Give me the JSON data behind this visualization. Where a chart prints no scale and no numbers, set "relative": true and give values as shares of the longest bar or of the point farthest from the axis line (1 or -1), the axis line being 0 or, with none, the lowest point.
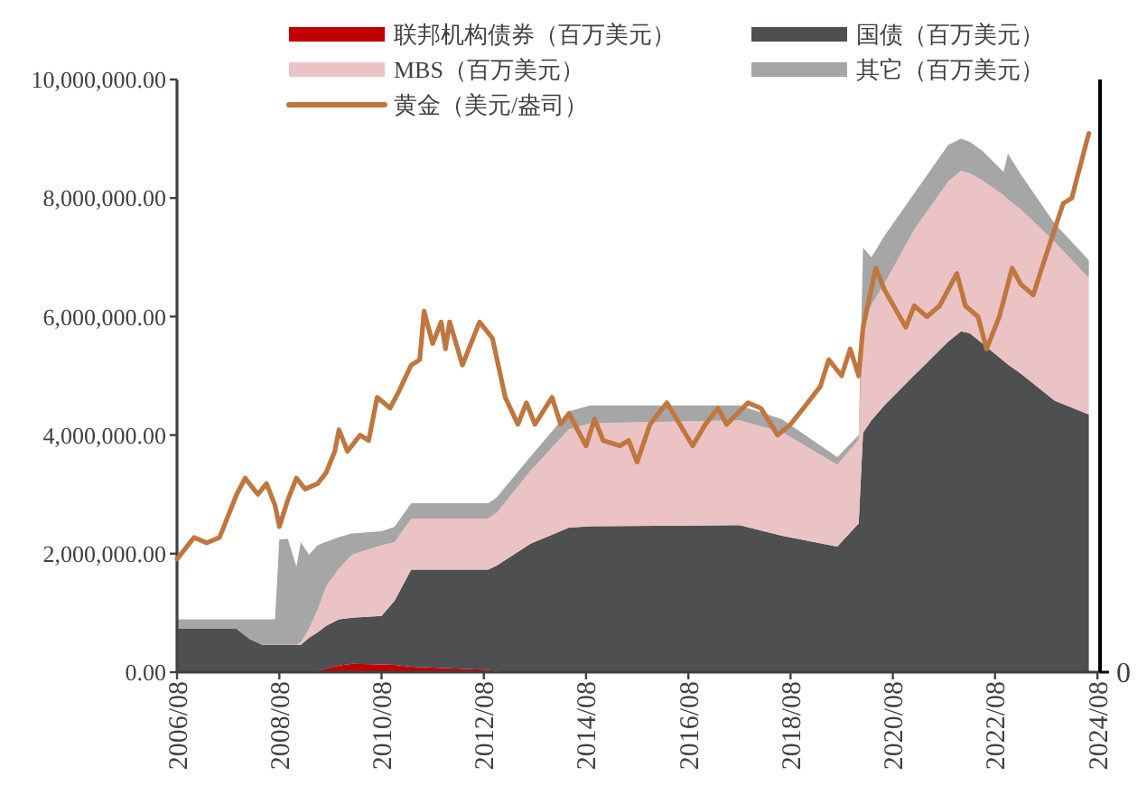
{
  "chart_data": [
    {
      "type": "area",
      "stacked": true,
      "legend": "top",
      "xlim": [
        "2006-08",
        "2024-08-20"
      ],
      "xticks": [
        {
          "value": "2006-08",
          "label": "2006/08"
        },
        {
          "value": "2008-08",
          "label": "2008/08"
        },
        {
          "value": "2010-08",
          "label": "2010/08"
        },
        {
          "value": "2012-08",
          "label": "2012/08"
        },
        {
          "value": "2014-08",
          "label": "2014/08"
        },
        {
          "value": "2016-08",
          "label": "2016/08"
        },
        {
          "value": "2018-08",
          "label": "2018/08"
        },
        {
          "value": "2020-08",
          "label": "2020/08"
        },
        {
          "value": "2022-08",
          "label": "2022/08"
        },
        {
          "value": "2024-08",
          "label": "2024/08"
        }
      ],
      "ylim": [
        0,
        10000000
      ],
      "yticks": [
        {
          "value": 0,
          "label": "0.00"
        },
        {
          "value": 2000000,
          "label": "2,000,000.00"
        },
        {
          "value": 4000000,
          "label": "4,000,000.00"
        },
        {
          "value": 6000000,
          "label": "6,000,000.00"
        },
        {
          "value": 8000000,
          "label": "8,000,000.00"
        },
        {
          "value": 10000000,
          "label": "10,000,000.00"
        }
      ],
      "x": [
        "2006-08",
        "2007-10",
        "2008-01",
        "2008-04",
        "2008-07",
        "2008-08",
        "2008-10",
        "2008-12",
        "2009-01",
        "2009-03",
        "2009-05",
        "2009-07",
        "2009-10",
        "2010-01",
        "2010-08",
        "2010-11",
        "2011-03",
        "2012-09",
        "2012-11",
        "2013-07",
        "2014-04",
        "2014-09",
        "2017-08",
        "2018-06",
        "2019-07",
        "2019-12",
        "2020-01",
        "2020-03",
        "2020-06",
        "2021-01",
        "2021-09",
        "2021-12",
        "2022-02",
        "2022-05",
        "2022-10",
        "2022-11",
        "2023-02",
        "2023-10",
        "2024-06"
      ],
      "series": [
        {
          "name": "联邦机构债券（百万美元）",
          "color": "#c00000",
          "values": [
            0,
            0,
            0,
            0,
            0,
            0,
            0,
            0,
            0,
            0,
            20000,
            60000,
            110000,
            140000,
            130000,
            120000,
            90000,
            40000,
            20000,
            0,
            0,
            0,
            0,
            0,
            0,
            0,
            0,
            0,
            0,
            0,
            0,
            0,
            0,
            0,
            0,
            0,
            0,
            0,
            0
          ]
        },
        {
          "name": "国债（百万美元）",
          "color": "#4e4f51",
          "values": [
            730000,
            730000,
            560000,
            460000,
            460000,
            460000,
            460000,
            460000,
            460000,
            580000,
            650000,
            720000,
            780000,
            780000,
            820000,
            1080000,
            1640000,
            1690000,
            1780000,
            2170000,
            2440000,
            2460000,
            2480000,
            2300000,
            2120000,
            2510000,
            4040000,
            4250000,
            4500000,
            5010000,
            5580000,
            5750000,
            5720000,
            5550000,
            5250000,
            5190000,
            5040000,
            4580000,
            4350000
          ]
        },
        {
          "name": "MBS（百万美元）",
          "color": "#ebc3c4",
          "values": [
            0,
            0,
            0,
            0,
            0,
            0,
            0,
            0,
            40000,
            150000,
            380000,
            670000,
            860000,
            1060000,
            1190000,
            990000,
            860000,
            860000,
            890000,
            1230000,
            1660000,
            1740000,
            1770000,
            1750000,
            1380000,
            1410000,
            1890000,
            1950000,
            2050000,
            2460000,
            2700000,
            2710000,
            2700000,
            2750000,
            2800000,
            2790000,
            2770000,
            2680000,
            2300000
          ]
        },
        {
          "name": "其它（百万美元）",
          "color": "#a6a6a6",
          "values": [
            160000,
            160000,
            330000,
            430000,
            430000,
            1780000,
            1790000,
            1320000,
            1690000,
            1250000,
            1090000,
            750000,
            530000,
            360000,
            240000,
            260000,
            260000,
            260000,
            260000,
            240000,
            300000,
            300000,
            250000,
            220000,
            130000,
            80000,
            1230000,
            800000,
            810000,
            610000,
            620000,
            540000,
            530000,
            500000,
            390000,
            770000,
            590000,
            310000,
            300000
          ]
        }
      ]
    },
    {
      "type": "line",
      "relative": true,
      "legend": "top",
      "tick_labels": false,
      "xlim": [
        "2006-08",
        "2024-08-20"
      ],
      "annotations": [
        "0"
      ],
      "series": [
        {
          "name": "黄金（美元/盎司）",
          "axis": "y2",
          "color": "#c0763f",
          "x": [
            "2006-08",
            "2006-10",
            "2006-12",
            "2007-03",
            "2007-06",
            "2007-08",
            "2007-10",
            "2007-12",
            "2008-03",
            "2008-05",
            "2008-07",
            "2008-08",
            "2008-10",
            "2008-12",
            "2009-02",
            "2009-05",
            "2009-07",
            "2009-09",
            "2009-10",
            "2009-12",
            "2010-03",
            "2010-05",
            "2010-07",
            "2010-10",
            "2010-12",
            "2011-03",
            "2011-05",
            "2011-06",
            "2011-08",
            "2011-10",
            "2011-11",
            "2011-12",
            "2012-03",
            "2012-05",
            "2012-07",
            "2012-10",
            "2013-01",
            "2013-04",
            "2013-06",
            "2013-08",
            "2013-12",
            "2014-02",
            "2014-04",
            "2014-08",
            "2014-10",
            "2014-12",
            "2015-04",
            "2015-06",
            "2015-08",
            "2015-11",
            "2016-03",
            "2016-09",
            "2016-12",
            "2017-03",
            "2017-05",
            "2017-10",
            "2018-01",
            "2018-05",
            "2018-08",
            "2018-11",
            "2019-03",
            "2019-05",
            "2019-08",
            "2019-10",
            "2019-12",
            "2020-01",
            "2020-04",
            "2020-06",
            "2020-11",
            "2021-01",
            "2021-04",
            "2021-07",
            "2021-11",
            "2022-01",
            "2022-04",
            "2022-06",
            "2022-09",
            "2022-12",
            "2023-02",
            "2023-05",
            "2023-07",
            "2023-12",
            "2024-02",
            "2024-03",
            "2024-06"
          ],
          "values": [
            0.21,
            0.23,
            0.25,
            0.24,
            0.25,
            0.29,
            0.33,
            0.36,
            0.33,
            0.35,
            0.31,
            0.27,
            0.32,
            0.36,
            0.34,
            0.35,
            0.37,
            0.41,
            0.45,
            0.41,
            0.44,
            0.43,
            0.51,
            0.49,
            0.52,
            0.57,
            0.58,
            0.67,
            0.61,
            0.65,
            0.6,
            0.65,
            0.57,
            0.61,
            0.65,
            0.62,
            0.51,
            0.46,
            0.5,
            0.46,
            0.51,
            0.46,
            0.48,
            0.42,
            0.47,
            0.43,
            0.42,
            0.43,
            0.39,
            0.46,
            0.5,
            0.42,
            0.46,
            0.49,
            0.46,
            0.5,
            0.49,
            0.44,
            0.46,
            0.49,
            0.53,
            0.58,
            0.55,
            0.6,
            0.55,
            0.64,
            0.75,
            0.71,
            0.64,
            0.68,
            0.66,
            0.68,
            0.74,
            0.68,
            0.66,
            0.6,
            0.66,
            0.75,
            0.72,
            0.7,
            0.75,
            0.87,
            0.88,
            0.91,
            1
          ]
        }
      ]
    }
  ]
}
